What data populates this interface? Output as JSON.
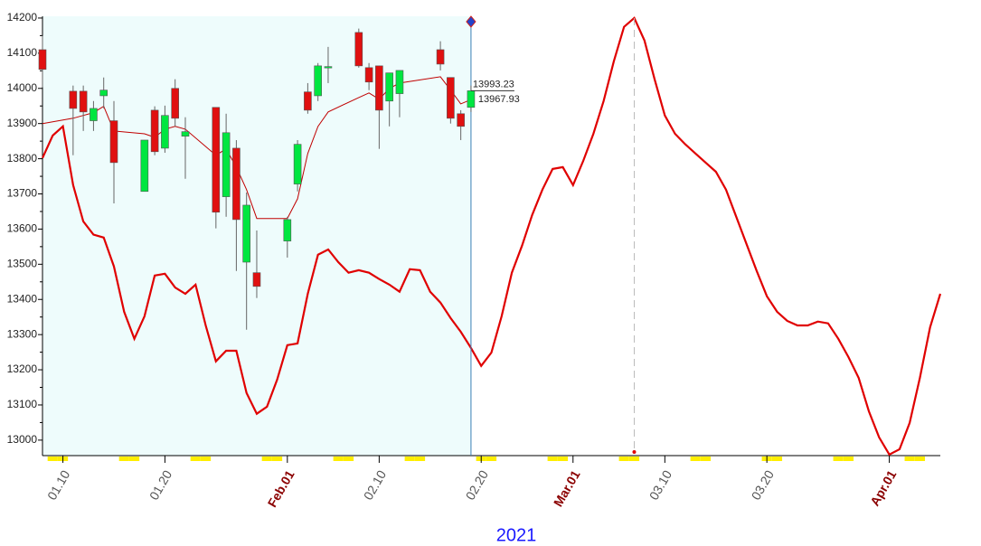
{
  "chart_data": {
    "type": "candlestick",
    "xlim": [
      8,
      96
    ],
    "xticks": [
      {
        "value": 10,
        "label": "01.10"
      },
      {
        "value": 20,
        "label": "01.20"
      },
      {
        "value": 32,
        "label": "Feb.01"
      },
      {
        "value": 41,
        "label": "02.10"
      },
      {
        "value": 51,
        "label": "02.20"
      },
      {
        "value": 60,
        "label": "Mar.01"
      },
      {
        "value": 69,
        "label": "03.10"
      },
      {
        "value": 79,
        "label": "03.20"
      },
      {
        "value": 91,
        "label": "Apr.01"
      }
    ],
    "x_label": "2021",
    "ylim": [
      12956,
      14205
    ],
    "yticks": [
      13000,
      13100,
      13200,
      13300,
      13400,
      13500,
      13600,
      13700,
      13800,
      13900,
      14000,
      14100,
      14200
    ],
    "up_color": "#00e640",
    "down_color": "#e01010",
    "candles": {
      "x": [
        8,
        11,
        12,
        13,
        14,
        15,
        18,
        19,
        20,
        21,
        22,
        25,
        26,
        27,
        28,
        29,
        32,
        33,
        34,
        35,
        36,
        39,
        40,
        41,
        42,
        43,
        47,
        48,
        49,
        50
      ],
      "open": [
        14110,
        13992,
        13992,
        13908,
        13979,
        13908,
        13707,
        13938,
        13830,
        14000,
        13864,
        13946,
        13692,
        13830,
        13506,
        13476,
        13566,
        13728,
        13990,
        13979,
        14059,
        14159,
        14059,
        14064,
        13964,
        13985,
        14110,
        14031,
        13928,
        13946
      ],
      "high": [
        14149,
        14008,
        14008,
        13964,
        14031,
        13964,
        13853,
        13949,
        13951,
        14026,
        13918,
        13946,
        13928,
        13853,
        13704,
        13596,
        13635,
        13853,
        14015,
        14072,
        14118,
        14170,
        14072,
        14064,
        14044,
        14051,
        14134,
        14031,
        13938,
        14008
      ],
      "low": [
        14003,
        13810,
        13879,
        13879,
        13943,
        13673,
        13707,
        13810,
        13817,
        13892,
        13743,
        13602,
        13635,
        13481,
        13314,
        13404,
        13519,
        13707,
        13928,
        13964,
        14015,
        14059,
        13995,
        13828,
        13892,
        13918,
        14051,
        13900,
        13853,
        13933
      ],
      "close": [
        14054,
        13943,
        13933,
        13943,
        13995,
        13789,
        13853,
        13820,
        13923,
        13915,
        13877,
        13648,
        13874,
        13627,
        13668,
        13437,
        13627,
        13841,
        13938,
        14064,
        14062,
        14064,
        14018,
        13938,
        14044,
        14051,
        14069,
        13915,
        13892,
        13993.23
      ]
    },
    "ma": {
      "color": "#c00000",
      "values": [
        13900,
        13915,
        13923,
        13931,
        13949,
        13879,
        13871,
        13861,
        13884,
        13892,
        13884,
        13810,
        13828,
        13776,
        13712,
        13630,
        13630,
        13686,
        13815,
        13892,
        13933,
        13974,
        13987,
        13969,
        14000,
        14015,
        14033,
        13995,
        13956,
        13967.93
      ]
    },
    "forecast": {
      "color": "#e00000",
      "x": [
        8,
        9,
        10,
        11,
        12,
        13,
        14,
        15,
        16,
        17,
        18,
        19,
        20,
        21,
        22,
        23,
        24,
        25,
        26,
        27,
        28,
        29,
        30,
        31,
        32,
        33,
        34,
        35,
        36,
        37,
        38,
        39,
        40,
        41,
        42,
        43,
        44,
        45,
        46,
        47,
        48,
        49,
        50,
        51,
        52,
        53,
        54,
        55,
        56,
        57,
        58,
        59,
        60,
        61,
        62,
        63,
        64,
        65,
        66,
        67,
        68,
        69,
        70,
        71,
        72,
        73,
        74,
        75,
        76,
        77,
        78,
        79,
        80,
        81,
        82,
        83,
        84,
        85,
        86,
        87,
        88,
        89,
        90,
        91,
        92,
        93,
        94,
        95,
        96
      ],
      "values": [
        13802,
        13866,
        13892,
        13725,
        13622,
        13584,
        13576,
        13494,
        13365,
        13288,
        13352,
        13468,
        13473,
        13434,
        13416,
        13442,
        13326,
        13224,
        13254,
        13254,
        13134,
        13075,
        13095,
        13172,
        13270,
        13275,
        13416,
        13527,
        13542,
        13506,
        13476,
        13483,
        13476,
        13458,
        13442,
        13422,
        13486,
        13483,
        13422,
        13391,
        13347,
        13308,
        13262,
        13211,
        13249,
        13352,
        13476,
        13553,
        13640,
        13712,
        13771,
        13776,
        13725,
        13794,
        13871,
        13964,
        14077,
        14175,
        14200,
        14136,
        14026,
        13923,
        13871,
        13841,
        13815,
        13789,
        13763,
        13712,
        13635,
        13558,
        13481,
        13409,
        13365,
        13339,
        13326,
        13326,
        13337,
        13332,
        13288,
        13236,
        13177,
        13082,
        13008,
        12959,
        12974,
        13049,
        13177,
        13321,
        13416
      ]
    },
    "price_labels": [
      13993.23,
      13967.93
    ]
  }
}
